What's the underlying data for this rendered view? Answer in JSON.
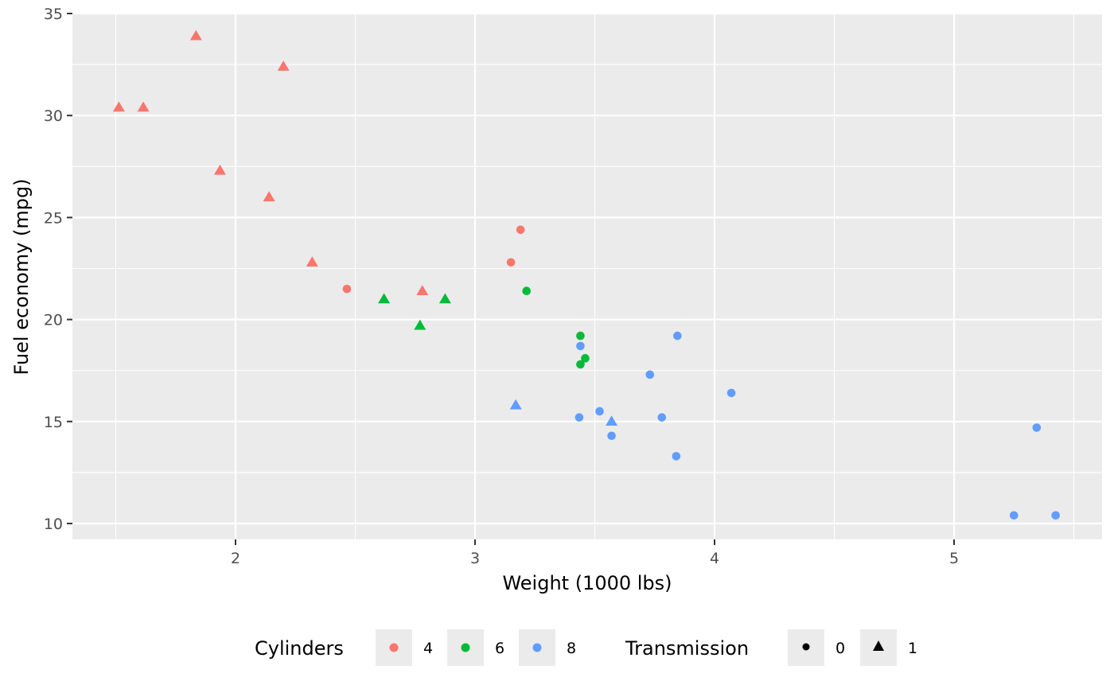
{
  "chart_data": {
    "type": "scatter",
    "title": "",
    "xlabel": "Weight (1000 lbs)",
    "ylabel": "Fuel economy (mpg)",
    "xlim": [
      1.32,
      5.62
    ],
    "ylim": [
      9.2,
      35
    ],
    "x_ticks": [
      2,
      3,
      4,
      5
    ],
    "y_ticks": [
      10,
      15,
      20,
      25,
      30,
      35
    ],
    "grid": true,
    "legend_position": "bottom",
    "color_legend": {
      "title": "Cylinders",
      "entries": [
        {
          "label": "4",
          "color": "#F8766D"
        },
        {
          "label": "6",
          "color": "#00BA38"
        },
        {
          "label": "8",
          "color": "#619CFF"
        }
      ]
    },
    "shape_legend": {
      "title": "Transmission",
      "entries": [
        {
          "label": "0",
          "shape": "circle"
        },
        {
          "label": "1",
          "shape": "triangle"
        }
      ]
    },
    "points": [
      {
        "x": 2.62,
        "y": 21.0,
        "cyl": "6",
        "am": "1"
      },
      {
        "x": 2.875,
        "y": 21.0,
        "cyl": "6",
        "am": "1"
      },
      {
        "x": 2.32,
        "y": 22.8,
        "cyl": "4",
        "am": "1"
      },
      {
        "x": 3.215,
        "y": 21.4,
        "cyl": "6",
        "am": "0"
      },
      {
        "x": 3.44,
        "y": 18.7,
        "cyl": "8",
        "am": "0"
      },
      {
        "x": 3.46,
        "y": 18.1,
        "cyl": "6",
        "am": "0"
      },
      {
        "x": 3.57,
        "y": 14.3,
        "cyl": "8",
        "am": "0"
      },
      {
        "x": 3.19,
        "y": 24.4,
        "cyl": "4",
        "am": "0"
      },
      {
        "x": 3.15,
        "y": 22.8,
        "cyl": "4",
        "am": "0"
      },
      {
        "x": 3.44,
        "y": 19.2,
        "cyl": "6",
        "am": "0"
      },
      {
        "x": 3.44,
        "y": 17.8,
        "cyl": "6",
        "am": "0"
      },
      {
        "x": 4.07,
        "y": 16.4,
        "cyl": "8",
        "am": "0"
      },
      {
        "x": 3.73,
        "y": 17.3,
        "cyl": "8",
        "am": "0"
      },
      {
        "x": 3.78,
        "y": 15.2,
        "cyl": "8",
        "am": "0"
      },
      {
        "x": 5.25,
        "y": 10.4,
        "cyl": "8",
        "am": "0"
      },
      {
        "x": 5.424,
        "y": 10.4,
        "cyl": "8",
        "am": "0"
      },
      {
        "x": 5.345,
        "y": 14.7,
        "cyl": "8",
        "am": "0"
      },
      {
        "x": 2.2,
        "y": 32.4,
        "cyl": "4",
        "am": "1"
      },
      {
        "x": 1.615,
        "y": 30.4,
        "cyl": "4",
        "am": "1"
      },
      {
        "x": 1.835,
        "y": 33.9,
        "cyl": "4",
        "am": "1"
      },
      {
        "x": 2.465,
        "y": 21.5,
        "cyl": "4",
        "am": "0"
      },
      {
        "x": 3.52,
        "y": 15.5,
        "cyl": "8",
        "am": "0"
      },
      {
        "x": 3.435,
        "y": 15.2,
        "cyl": "8",
        "am": "0"
      },
      {
        "x": 3.84,
        "y": 13.3,
        "cyl": "8",
        "am": "0"
      },
      {
        "x": 3.845,
        "y": 19.2,
        "cyl": "8",
        "am": "0"
      },
      {
        "x": 1.935,
        "y": 27.3,
        "cyl": "4",
        "am": "1"
      },
      {
        "x": 2.14,
        "y": 26.0,
        "cyl": "4",
        "am": "1"
      },
      {
        "x": 1.513,
        "y": 30.4,
        "cyl": "4",
        "am": "1"
      },
      {
        "x": 3.17,
        "y": 15.8,
        "cyl": "8",
        "am": "1"
      },
      {
        "x": 2.77,
        "y": 19.7,
        "cyl": "6",
        "am": "1"
      },
      {
        "x": 3.57,
        "y": 15.0,
        "cyl": "8",
        "am": "1"
      },
      {
        "x": 2.78,
        "y": 21.4,
        "cyl": "4",
        "am": "1"
      }
    ]
  },
  "axes": {
    "x_title": "Weight (1000 lbs)",
    "y_title": "Fuel economy (mpg)",
    "x_tick_labels": [
      "2",
      "3",
      "4",
      "5"
    ],
    "y_tick_labels": [
      "10",
      "15",
      "20",
      "25",
      "30",
      "35"
    ]
  },
  "legend": {
    "cyl_title": "Cylinders",
    "cyl_labels": [
      "4",
      "6",
      "8"
    ],
    "am_title": "Transmission",
    "am_labels": [
      "0",
      "1"
    ]
  },
  "colors": {
    "panel_bg": "#EBEBEB",
    "grid": "#FFFFFF",
    "cyl_4": "#F8766D",
    "cyl_6": "#00BA38",
    "cyl_8": "#619CFF"
  }
}
